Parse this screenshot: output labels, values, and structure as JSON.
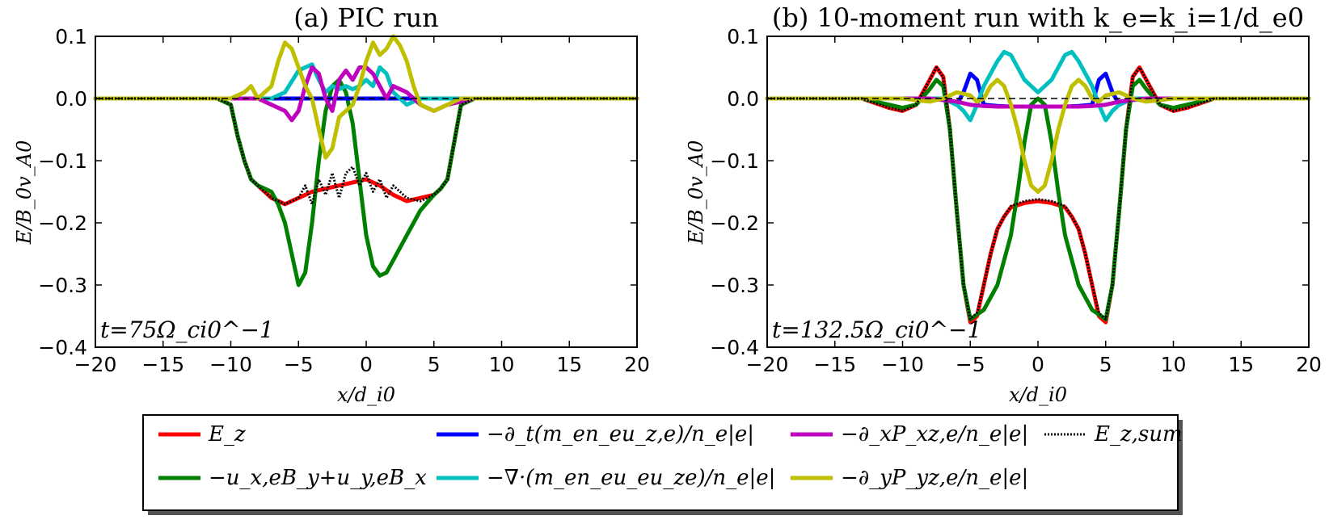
{
  "chart_data": [
    {
      "type": "line",
      "title": "(a) PIC run",
      "xlabel": "x/d_i0",
      "ylabel": "E/B_0v_A0",
      "xlim": [
        -20,
        20
      ],
      "ylim": [
        -0.4,
        0.1
      ],
      "xticks": [
        "−20",
        "−15",
        "−10",
        "−5",
        "0",
        "5",
        "10",
        "15",
        "20"
      ],
      "yticks": [
        "0.1",
        "0.0",
        "−0.1",
        "−0.2",
        "−0.3",
        "−0.4"
      ],
      "annotation": "t=75Ω_ci0^−1",
      "grid": false,
      "series": [
        {
          "name": "E_z",
          "color": "#ff0000",
          "x": [
            -20,
            -12,
            -11,
            -10,
            -9.5,
            -9,
            -8.5,
            -8,
            -7,
            -6,
            -5,
            -4,
            -3,
            -2,
            -1,
            0,
            1,
            2,
            3,
            4,
            5,
            5.5,
            6,
            6.5,
            7,
            8,
            12,
            20
          ],
          "y": [
            0,
            0,
            0,
            -0.01,
            -0.06,
            -0.1,
            -0.13,
            -0.14,
            -0.16,
            -0.17,
            -0.16,
            -0.15,
            -0.145,
            -0.14,
            -0.135,
            -0.13,
            -0.14,
            -0.155,
            -0.165,
            -0.16,
            -0.155,
            -0.145,
            -0.13,
            -0.07,
            -0.01,
            0,
            0,
            0
          ]
        },
        {
          "name": "−u_x,eB_y+u_y,eB_x",
          "color": "#008000",
          "x": [
            -20,
            -12,
            -11,
            -10,
            -9.5,
            -9,
            -8.5,
            -8,
            -7,
            -6.5,
            -6,
            -5.5,
            -5,
            -4.5,
            -4,
            -3.5,
            -3,
            -2.5,
            -2,
            -1.5,
            -1,
            -0.5,
            0,
            0.5,
            1,
            1.5,
            2,
            3,
            4,
            5,
            5.5,
            6,
            6.5,
            7,
            8,
            12,
            20
          ],
          "y": [
            0,
            0,
            0,
            -0.01,
            -0.06,
            -0.1,
            -0.13,
            -0.14,
            -0.15,
            -0.17,
            -0.2,
            -0.25,
            -0.3,
            -0.28,
            -0.2,
            -0.1,
            -0.02,
            0.02,
            0.03,
            0.01,
            -0.04,
            -0.13,
            -0.22,
            -0.27,
            -0.285,
            -0.28,
            -0.26,
            -0.22,
            -0.18,
            -0.155,
            -0.145,
            -0.13,
            -0.07,
            -0.01,
            0,
            0,
            0
          ]
        },
        {
          "name": "−∂_t(m_en_eu_z,e)/n_e|e|",
          "color": "#0000ff",
          "x": [
            -20,
            20
          ],
          "y": [
            0,
            0
          ]
        },
        {
          "name": "−∇·(m_en_eu_eu_ze)/n_e|e|",
          "color": "#00bfbf",
          "x": [
            -20,
            -10,
            -7,
            -6,
            -5,
            -4.5,
            -4,
            -3.5,
            -3,
            -2.5,
            -2,
            -1.5,
            -1,
            -0.5,
            0,
            0.5,
            1,
            1.5,
            2,
            3,
            4,
            5,
            7,
            10,
            20
          ],
          "y": [
            0,
            0,
            0,
            0.01,
            0.045,
            0.05,
            0.055,
            0.03,
            0.01,
            0.02,
            0.015,
            0.02,
            0.015,
            0.02,
            0.03,
            0.02,
            0.05,
            0.04,
            0.01,
            -0.01,
            0.0,
            0.0,
            0,
            0,
            0
          ]
        },
        {
          "name": "−∂_xP_xz,e/n_e|e|",
          "color": "#bf00bf",
          "x": [
            -20,
            -10,
            -8,
            -7,
            -6,
            -5.5,
            -5,
            -4.5,
            -4,
            -3.5,
            -3,
            -2.5,
            -2,
            -1.5,
            -1,
            -0.5,
            0,
            0.5,
            1,
            1.5,
            2,
            3,
            4,
            5,
            6,
            8,
            10,
            20
          ],
          "y": [
            0,
            0,
            0,
            -0.01,
            -0.02,
            -0.035,
            -0.02,
            0.02,
            0.05,
            0.04,
            0.0,
            -0.02,
            0.03,
            0.045,
            0.03,
            0.05,
            0.05,
            0.04,
            0.02,
            0.0,
            0.02,
            0.01,
            -0.01,
            -0.02,
            -0.01,
            0,
            0,
            0
          ]
        },
        {
          "name": "−∂_yP_yz,e/n_e|e|",
          "color": "#bfbf00",
          "x": [
            -20,
            -10,
            -9,
            -8.5,
            -8,
            -7,
            -6.5,
            -6,
            -5.5,
            -5,
            -4.5,
            -4,
            -3.5,
            -3,
            -2.5,
            -2,
            -1.5,
            -1,
            -0.5,
            0,
            0.5,
            1,
            1.5,
            2,
            2.5,
            3,
            3.5,
            4,
            5,
            6,
            7,
            10,
            20
          ],
          "y": [
            0,
            0,
            0.01,
            0.02,
            0.0,
            0.02,
            0.06,
            0.09,
            0.08,
            0.05,
            0.02,
            0.0,
            -0.05,
            -0.095,
            -0.08,
            -0.03,
            -0.02,
            -0.01,
            0.02,
            0.06,
            0.09,
            0.07,
            0.08,
            0.1,
            0.085,
            0.06,
            0.02,
            -0.01,
            -0.02,
            -0.01,
            0,
            0,
            0
          ]
        },
        {
          "name": "E_z,sum",
          "color": "#000000",
          "dash": true,
          "x": [
            -20,
            -12,
            -11,
            -10,
            -9.5,
            -9,
            -8.5,
            -8,
            -7,
            -6,
            -5,
            -4.5,
            -4,
            -3.5,
            -3,
            -2.5,
            -2,
            -1.5,
            -1,
            -0.5,
            0,
            0.5,
            1,
            1.5,
            2,
            3,
            4,
            5,
            5.5,
            6,
            6.5,
            7,
            8,
            12,
            20
          ],
          "y": [
            0,
            0,
            0,
            -0.01,
            -0.06,
            -0.1,
            -0.13,
            -0.14,
            -0.16,
            -0.17,
            -0.16,
            -0.14,
            -0.17,
            -0.13,
            -0.155,
            -0.12,
            -0.16,
            -0.12,
            -0.11,
            -0.14,
            -0.12,
            -0.15,
            -0.13,
            -0.16,
            -0.14,
            -0.16,
            -0.165,
            -0.155,
            -0.145,
            -0.13,
            -0.07,
            -0.01,
            0,
            0,
            0
          ]
        }
      ]
    },
    {
      "type": "line",
      "title": "(b) 10-moment run with k_e=k_i=1/d_e0",
      "xlabel": "x/d_i0",
      "ylabel": "E/B_0v_A0",
      "xlim": [
        -20,
        20
      ],
      "ylim": [
        -0.4,
        0.1
      ],
      "xticks": [
        "−20",
        "−15",
        "−10",
        "−5",
        "0",
        "5",
        "10",
        "15",
        "20"
      ],
      "yticks": [
        "0.1",
        "0.0",
        "−0.1",
        "−0.2",
        "−0.3",
        "−0.4"
      ],
      "annotation": "t=132.5Ω_ci0^−1",
      "grid": false,
      "series": [
        {
          "name": "E_z",
          "color": "#ff0000",
          "x": [
            -20,
            -13,
            -11,
            -10,
            -9,
            -8,
            -7.5,
            -7,
            -6.5,
            -6,
            -5.5,
            -5,
            -4.5,
            -4,
            -3.5,
            -3,
            -2.5,
            -2,
            -1,
            0,
            1,
            2,
            2.5,
            3,
            3.5,
            4,
            4.5,
            5,
            5.5,
            6,
            6.5,
            7,
            7.5,
            8,
            9,
            10,
            11,
            13,
            20
          ],
          "y": [
            0,
            0,
            -0.015,
            -0.02,
            -0.01,
            0.03,
            0.05,
            0.035,
            -0.05,
            -0.18,
            -0.3,
            -0.36,
            -0.35,
            -0.3,
            -0.25,
            -0.21,
            -0.19,
            -0.175,
            -0.168,
            -0.165,
            -0.168,
            -0.175,
            -0.19,
            -0.21,
            -0.25,
            -0.3,
            -0.35,
            -0.36,
            -0.3,
            -0.18,
            -0.05,
            0.035,
            0.05,
            0.03,
            -0.01,
            -0.02,
            -0.015,
            0,
            0
          ]
        },
        {
          "name": "−u_x,eB_y+u_y,eB_x",
          "color": "#008000",
          "x": [
            -20,
            -13,
            -11,
            -10,
            -9,
            -8,
            -7.5,
            -7,
            -6.5,
            -6,
            -5.5,
            -5,
            -4,
            -3,
            -2,
            -1.5,
            -1,
            -0.5,
            0,
            0.5,
            1,
            1.5,
            2,
            3,
            4,
            5,
            5.5,
            6,
            6.5,
            7,
            7.5,
            8,
            9,
            10,
            11,
            13,
            20
          ],
          "y": [
            0,
            0,
            -0.01,
            -0.015,
            -0.01,
            0.015,
            0.03,
            0.02,
            -0.05,
            -0.18,
            -0.3,
            -0.355,
            -0.34,
            -0.3,
            -0.22,
            -0.15,
            -0.07,
            -0.01,
            0.0,
            -0.01,
            -0.07,
            -0.15,
            -0.22,
            -0.3,
            -0.34,
            -0.355,
            -0.3,
            -0.18,
            -0.05,
            0.02,
            0.03,
            0.015,
            -0.01,
            -0.015,
            -0.01,
            0,
            0
          ]
        },
        {
          "name": "−∂_t(m_en_eu_z,e)/n_e|e|",
          "color": "#0000ff",
          "x": [
            -20,
            -7,
            -6,
            -5.5,
            -5,
            -4.5,
            -4,
            -3,
            -2,
            0,
            2,
            3,
            4,
            4.5,
            5,
            5.5,
            6,
            7,
            20
          ],
          "y": [
            0,
            0,
            -0.01,
            0.01,
            0.04,
            0.03,
            -0.01,
            -0.012,
            -0.013,
            -0.013,
            -0.013,
            -0.012,
            -0.01,
            0.03,
            0.04,
            0.01,
            -0.01,
            0,
            0
          ]
        },
        {
          "name": "−∇·(m_en_eu_eu_ze)/n_e|e|",
          "color": "#00bfbf",
          "x": [
            -20,
            -8,
            -7,
            -6,
            -5.5,
            -5,
            -4.5,
            -4,
            -3,
            -2.5,
            -2,
            -1,
            0,
            1,
            2,
            2.5,
            3,
            4,
            4.5,
            5,
            5.5,
            6,
            7,
            8,
            20
          ],
          "y": [
            0,
            0,
            0,
            -0.01,
            -0.02,
            -0.035,
            -0.01,
            0.02,
            0.06,
            0.075,
            0.07,
            0.03,
            0.01,
            0.03,
            0.07,
            0.075,
            0.06,
            0.02,
            -0.01,
            -0.035,
            -0.02,
            -0.01,
            0,
            0,
            0
          ]
        },
        {
          "name": "−∂_xP_xz,e/n_e|e|",
          "color": "#bf00bf",
          "x": [
            -20,
            -8,
            -6,
            -5,
            -4,
            -3,
            -2,
            -1,
            0,
            1,
            2,
            3,
            4,
            5,
            6,
            8,
            20
          ],
          "y": [
            0,
            0,
            -0.005,
            -0.01,
            -0.012,
            -0.013,
            -0.013,
            -0.013,
            -0.013,
            -0.013,
            -0.013,
            -0.013,
            -0.012,
            -0.01,
            -0.005,
            0,
            0
          ]
        },
        {
          "name": "−∂_yP_yz,e/n_e|e|",
          "color": "#bfbf00",
          "x": [
            -20,
            -10,
            -8,
            -7,
            -6,
            -5,
            -4.5,
            -4,
            -3.5,
            -3,
            -2.5,
            -2,
            -1.5,
            -1,
            -0.5,
            0,
            0.5,
            1,
            1.5,
            2,
            2.5,
            3,
            3.5,
            4,
            4.5,
            5,
            6,
            7,
            8,
            10,
            20
          ],
          "y": [
            0,
            0,
            -0.005,
            0.0,
            0.01,
            0.005,
            -0.005,
            0.0,
            0.02,
            0.03,
            0.02,
            -0.01,
            -0.05,
            -0.1,
            -0.14,
            -0.15,
            -0.14,
            -0.1,
            -0.05,
            -0.01,
            0.02,
            0.03,
            0.02,
            0.0,
            -0.005,
            0.005,
            0.01,
            0.0,
            -0.005,
            0,
            0
          ]
        },
        {
          "name": "E_z,sum",
          "color": "#000000",
          "dash": true,
          "x": [
            -20,
            -13,
            -11,
            -10,
            -9,
            -8,
            -7.5,
            -7,
            -6.5,
            -6,
            -5.5,
            -5,
            -4.5,
            -4,
            -3.5,
            -3,
            -2.5,
            -2,
            -1,
            0,
            1,
            2,
            2.5,
            3,
            3.5,
            4,
            4.5,
            5,
            5.5,
            6,
            6.5,
            7,
            7.5,
            8,
            9,
            10,
            11,
            13,
            20
          ],
          "y": [
            0,
            0,
            -0.015,
            -0.02,
            -0.01,
            0.03,
            0.05,
            0.035,
            -0.05,
            -0.18,
            -0.3,
            -0.355,
            -0.345,
            -0.3,
            -0.25,
            -0.21,
            -0.19,
            -0.173,
            -0.165,
            -0.162,
            -0.165,
            -0.173,
            -0.19,
            -0.21,
            -0.25,
            -0.3,
            -0.345,
            -0.355,
            -0.3,
            -0.18,
            -0.05,
            0.035,
            0.05,
            0.03,
            -0.01,
            -0.02,
            -0.015,
            0,
            0
          ]
        }
      ]
    }
  ],
  "legend": {
    "entries": [
      {
        "label": "E_z",
        "color": "#ff0000"
      },
      {
        "label": "−∂_t(m_en_eu_z,e)/n_e|e|",
        "color": "#0000ff"
      },
      {
        "label": "−∂_xP_xz,e/n_e|e|",
        "color": "#bf00bf"
      },
      {
        "label": "E_z,sum",
        "color": "#000000"
      },
      {
        "label": "−u_x,eB_y+u_y,eB_x",
        "color": "#008000"
      },
      {
        "label": "−∇·(m_en_eu_eu_ze)/n_e|e|",
        "color": "#00bfbf"
      },
      {
        "label": "−∂_yP_yz,e/n_e|e|",
        "color": "#bfbf00"
      }
    ]
  }
}
